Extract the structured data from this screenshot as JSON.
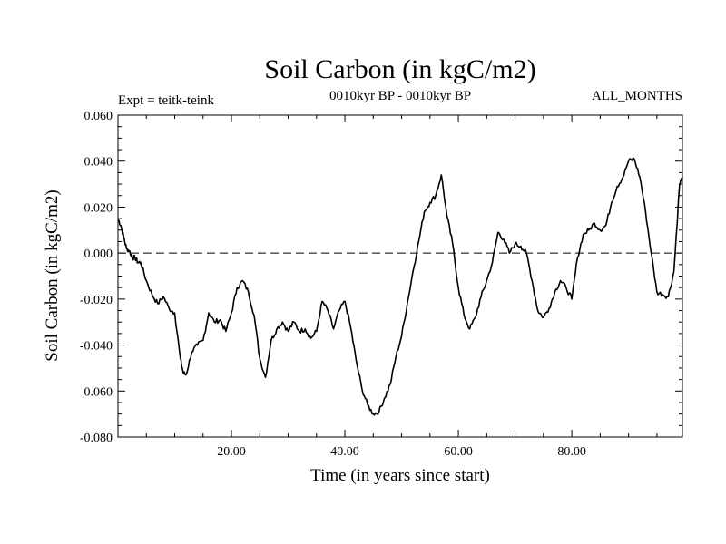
{
  "chart_data": {
    "type": "line",
    "title": "Soil Carbon (in kgC/m2)",
    "subtitle_left": "Expt = teitk-teink",
    "subtitle_center": "0010kyr BP - 0010kyr BP",
    "subtitle_right": "ALL_MONTHS",
    "xlabel": "Time (in years since start)",
    "ylabel": "Soil Carbon (in kgC/m2)",
    "xlim": [
      0,
      99.5
    ],
    "ylim": [
      -0.08,
      0.06
    ],
    "xticks": [
      20,
      40,
      60,
      80
    ],
    "xtick_labels": [
      "20.00",
      "40.00",
      "60.00",
      "80.00"
    ],
    "yticks": [
      -0.08,
      -0.06,
      -0.04,
      -0.02,
      0.0,
      0.02,
      0.04,
      0.06
    ],
    "ytick_labels": [
      "-0.080",
      "-0.060",
      "-0.040",
      "-0.020",
      "0.000",
      "0.020",
      "0.040",
      "0.060"
    ],
    "reference_line": {
      "y": 0.0,
      "style": "dashed"
    },
    "line_color": "#000000",
    "series": [
      {
        "name": "teitk-teink",
        "x": [
          0,
          0.5,
          1,
          1.5,
          2,
          2.5,
          3,
          3.5,
          4,
          5,
          6,
          7,
          8,
          9,
          10,
          11,
          11.5,
          12,
          13,
          14,
          15,
          16,
          17,
          18,
          19,
          20,
          21,
          22,
          23,
          24,
          25,
          26,
          27,
          28,
          29,
          30,
          31,
          32,
          33,
          34,
          35,
          36,
          37,
          38,
          39,
          40,
          41,
          42,
          43,
          44,
          45,
          46,
          47,
          48,
          49,
          50,
          51,
          52,
          53,
          54,
          55,
          56,
          57,
          58,
          59,
          60,
          61,
          62,
          63,
          64,
          65,
          66,
          67,
          68,
          69,
          70,
          71,
          72,
          73,
          74,
          75,
          76,
          77,
          78,
          79,
          80,
          81,
          82,
          83,
          84,
          85,
          86,
          87,
          88,
          89,
          90,
          91,
          92,
          93,
          94,
          95,
          96,
          97,
          98,
          99,
          99.5
        ],
        "y": [
          0.015,
          0.012,
          0.007,
          0.002,
          0.001,
          -0.002,
          -0.002,
          -0.004,
          -0.004,
          -0.012,
          -0.018,
          -0.022,
          -0.019,
          -0.024,
          -0.026,
          -0.046,
          -0.052,
          -0.053,
          -0.043,
          -0.04,
          -0.038,
          -0.026,
          -0.03,
          -0.029,
          -0.034,
          -0.026,
          -0.015,
          -0.012,
          -0.017,
          -0.027,
          -0.046,
          -0.054,
          -0.038,
          -0.033,
          -0.03,
          -0.034,
          -0.03,
          -0.034,
          -0.033,
          -0.037,
          -0.034,
          -0.021,
          -0.025,
          -0.033,
          -0.025,
          -0.021,
          -0.032,
          -0.047,
          -0.059,
          -0.066,
          -0.07,
          -0.069,
          -0.063,
          -0.057,
          -0.045,
          -0.036,
          -0.022,
          -0.008,
          0.005,
          0.018,
          0.022,
          0.025,
          0.034,
          0.016,
          0.004,
          -0.015,
          -0.027,
          -0.033,
          -0.028,
          -0.019,
          -0.012,
          -0.004,
          0.009,
          0.006,
          0.0,
          0.004,
          0.003,
          0.0,
          -0.012,
          -0.025,
          -0.028,
          -0.024,
          -0.017,
          -0.012,
          -0.015,
          -0.02,
          -0.002,
          0.008,
          0.01,
          0.013,
          0.01,
          0.012,
          0.022,
          0.029,
          0.033,
          0.04,
          0.041,
          0.033,
          0.018,
          0.0,
          -0.017,
          -0.018,
          -0.019,
          -0.008,
          0.03,
          0.033
        ]
      }
    ]
  }
}
